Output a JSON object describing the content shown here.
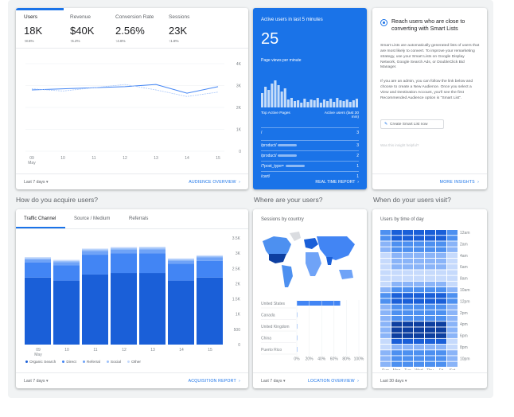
{
  "metrics": [
    {
      "label": "Users",
      "value": "18K",
      "change": "↑8.5%"
    },
    {
      "label": "Revenue",
      "value": "$40K",
      "change": "↑5.2%"
    },
    {
      "label": "Conversion Rate",
      "value": "2.56%",
      "change": "↑4.6%"
    },
    {
      "label": "Sessions",
      "value": "23K",
      "change": "↑1.8%"
    }
  ],
  "overview": {
    "range": "Last 7 days",
    "link": "AUDIENCE OVERVIEW",
    "y_ticks": [
      "4K",
      "3K",
      "2K",
      "1K",
      "0"
    ],
    "x_ticks": [
      "09",
      "10",
      "11",
      "12",
      "13",
      "14",
      "15"
    ],
    "x_sub": "May"
  },
  "realtime": {
    "title": "Active users in last 5 minutes",
    "count": "25",
    "subtitle": "Page views per minute",
    "col_pages": "Top Active Pages",
    "col_users": "Active users (last 30 min)",
    "rows": [
      {
        "page": "/",
        "users": "3"
      },
      {
        "page": "/product/",
        "users": "3"
      },
      {
        "page": "/product/",
        "users": "2"
      },
      {
        "page": "/?post_type=",
        "users": "1"
      },
      {
        "page": "/cart/",
        "users": "1"
      }
    ],
    "link": "REAL TIME REPORT",
    "bar_color": "#ffffff",
    "bg_color": "#1a73e8"
  },
  "insights": {
    "title": "Reach users who are close to converting with Smart Lists",
    "body1": "Smart Lists are automatically generated lists of users that are most likely to convert. To improve your remarketing strategy, use your Smart Lists on Google Display Network, Google Search Ads, or DoubleClick Bid Manager.",
    "body2": "If you are an admin, you can follow the link below and choose to create a New Audience. Once you select a View and Destination Account, you'll see the first Recommended Audience option is \"Smart List\".",
    "button": "Create Smart List now",
    "helpful": "Was this insight helpful?",
    "link": "MORE INSIGHTS"
  },
  "sections": {
    "acquire": "How do you acquire users?",
    "where": "Where are your users?",
    "when": "When do your users visit?"
  },
  "acquisition": {
    "tabs": [
      "Traffic Channel",
      "Source / Medium",
      "Referrals"
    ],
    "legend": [
      "Organic Search",
      "Direct",
      "Referral",
      "Social",
      "Other"
    ],
    "range": "Last 7 days",
    "link": "ACQUISITION REPORT"
  },
  "chart_data": [
    {
      "type": "line",
      "title": "",
      "x": [
        "09",
        "10",
        "11",
        "12",
        "13",
        "14",
        "15"
      ],
      "series": [
        {
          "values": [
            2800,
            2850,
            2900,
            2950,
            3050,
            2650,
            2950
          ]
        },
        {
          "values": [
            2850,
            2750,
            2900,
            3050,
            2800,
            2500,
            2700
          ]
        }
      ],
      "ylim": [
        0,
        4000
      ],
      "colors": [
        "#4285f4",
        "#a8c7fa"
      ]
    },
    {
      "type": "bar",
      "title": "",
      "categories": [
        "09",
        "10",
        "11",
        "12",
        "13",
        "14",
        "15"
      ],
      "series": [
        {
          "name": "Organic Search",
          "values": [
            2200,
            2100,
            2300,
            2350,
            2350,
            2100,
            2200
          ]
        },
        {
          "name": "Direct",
          "values": [
            500,
            500,
            650,
            650,
            650,
            550,
            550
          ]
        },
        {
          "name": "Referral",
          "values": [
            100,
            110,
            120,
            120,
            130,
            110,
            110
          ]
        },
        {
          "name": "Social",
          "values": [
            40,
            40,
            50,
            50,
            50,
            40,
            40
          ]
        },
        {
          "name": "Other",
          "values": [
            30,
            30,
            30,
            30,
            30,
            30,
            30
          ]
        }
      ],
      "ylim": [
        0,
        3500
      ],
      "y_ticks": [
        "3.5K",
        "3K",
        "2.5K",
        "2K",
        "1.5K",
        "1K",
        "500",
        "0"
      ],
      "colors": [
        "#1a5fd8",
        "#4285f4",
        "#6fa3f7",
        "#9ec2fa",
        "#c6dafc"
      ]
    },
    {
      "type": "bar",
      "title": "Sessions by country",
      "categories": [
        "United States",
        "Canada",
        "United Kingdom",
        "China",
        "Puerto Rico"
      ],
      "values": [
        70,
        0.6,
        0.5,
        0.3,
        0.2
      ],
      "x_ticks": [
        "0%",
        "20%",
        "40%",
        "60%",
        "80%",
        "100%"
      ],
      "xlim": [
        0,
        100
      ],
      "colors": [
        "#4285f4"
      ]
    },
    {
      "type": "heatmap",
      "title": "Users by time of day",
      "x": [
        "Sun",
        "Mon",
        "Tue",
        "Wed",
        "Thu",
        "Fri",
        "Sat"
      ],
      "y": [
        "12am",
        "2am",
        "4am",
        "6am",
        "8am",
        "10am",
        "12pm",
        "2pm",
        "4pm",
        "6pm",
        "8pm",
        "10pm"
      ],
      "scale": [
        "150",
        "400",
        "650",
        "900",
        "1.2K"
      ],
      "colors": [
        "#c6dafc",
        "#8ab4f8",
        "#4d90f0",
        "#1a5fd8",
        "#0d3fa0"
      ]
    }
  ],
  "map": {
    "range": "Last 7 days",
    "link": "LOCATION OVERVIEW"
  },
  "heat": {
    "range": "Last 30 days"
  }
}
